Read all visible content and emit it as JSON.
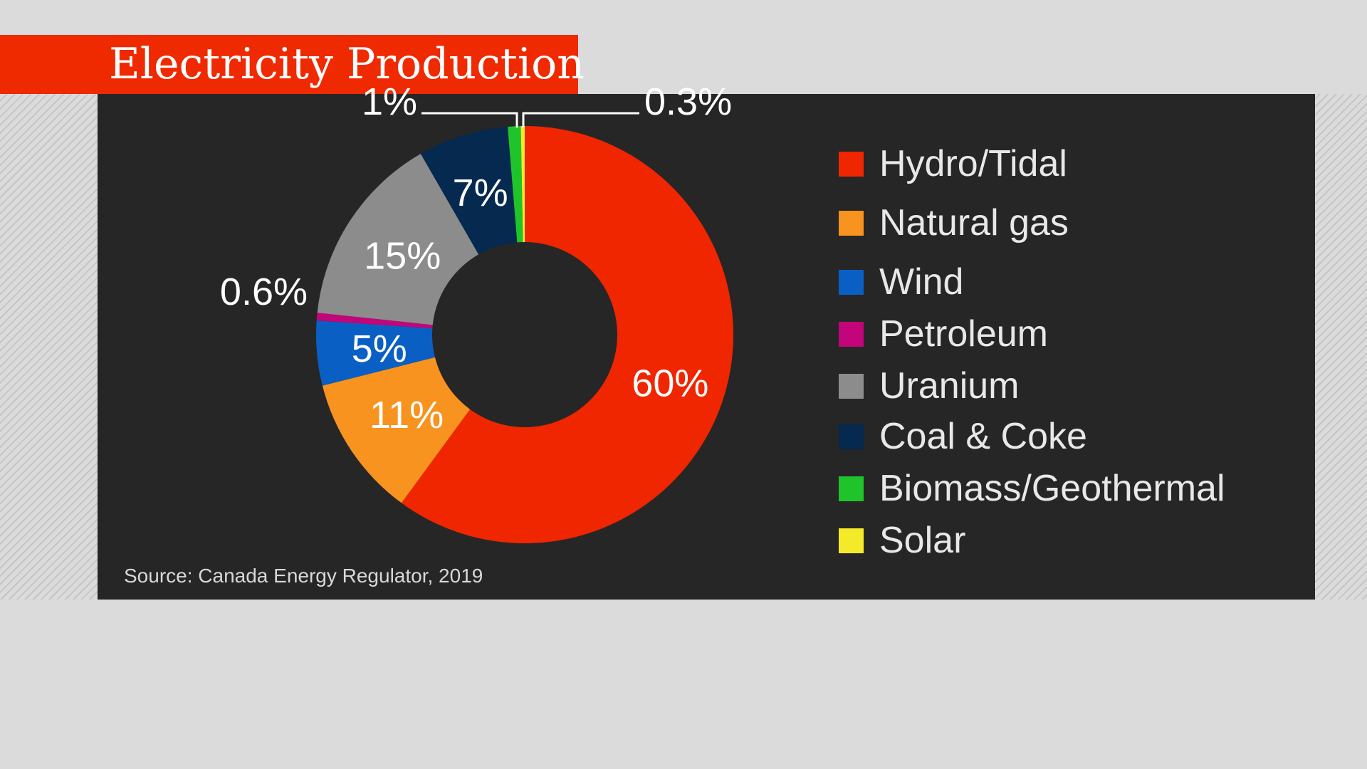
{
  "title": "Electricity Production",
  "source": "Source: Canada Energy Regulator, 2019",
  "colors": {
    "background": "#dcdbdc",
    "panel": "#262626",
    "title_bar": "#ef2a00"
  },
  "chart_data": {
    "type": "pie",
    "style": "donut",
    "title": "Electricity Production",
    "unit": "%",
    "legend_position": "right",
    "series": [
      {
        "name": "Hydro/Tidal",
        "value": 60,
        "label": "60%",
        "color": "#f02600"
      },
      {
        "name": "Natural gas",
        "value": 11,
        "label": "11%",
        "color": "#f7931e"
      },
      {
        "name": "Wind",
        "value": 5,
        "label": "5%",
        "color": "#0a5fc4"
      },
      {
        "name": "Petroleum",
        "value": 0.6,
        "label": "0.6%",
        "color": "#c2057a"
      },
      {
        "name": "Uranium",
        "value": 15,
        "label": "15%",
        "color": "#8c8c8c"
      },
      {
        "name": "Coal & Coke",
        "value": 7,
        "label": "7%",
        "color": "#05294f"
      },
      {
        "name": "Biomass/Geothermal",
        "value": 1,
        "label": "1%",
        "color": "#1fc42b"
      },
      {
        "name": "Solar",
        "value": 0.3,
        "label": "0.3%",
        "color": "#f5ea2a"
      }
    ]
  }
}
